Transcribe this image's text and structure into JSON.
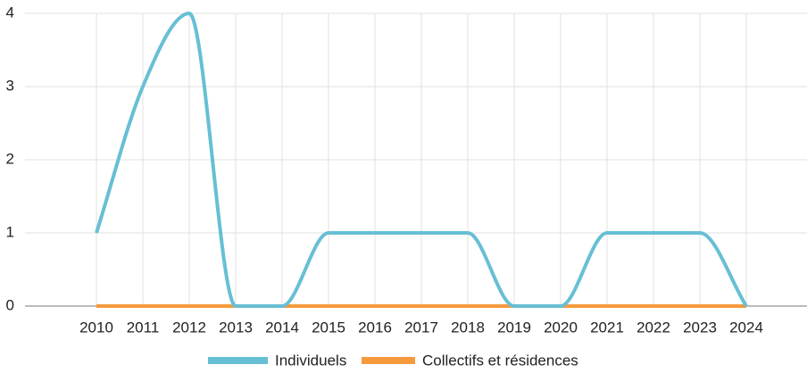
{
  "chart_data": {
    "type": "line",
    "categories": [
      "2010",
      "2011",
      "2012",
      "2013",
      "2014",
      "2015",
      "2016",
      "2017",
      "2018",
      "2019",
      "2020",
      "2021",
      "2022",
      "2023",
      "2024"
    ],
    "series": [
      {
        "name": "Individuels",
        "color": "#67bfd4",
        "values": [
          1,
          3,
          4,
          0,
          0,
          1,
          1,
          1,
          1,
          0,
          0,
          1,
          1,
          1,
          0
        ]
      },
      {
        "name": "Collectifs et résidences",
        "color": "#f59a3c",
        "values": [
          0,
          0,
          0,
          0,
          0,
          0,
          0,
          0,
          0,
          0,
          0,
          0,
          0,
          0,
          0
        ]
      }
    ],
    "ylim": [
      0,
      4
    ],
    "yticks": [
      0,
      1,
      2,
      3,
      4
    ],
    "grid": true,
    "legend": "bottom"
  }
}
